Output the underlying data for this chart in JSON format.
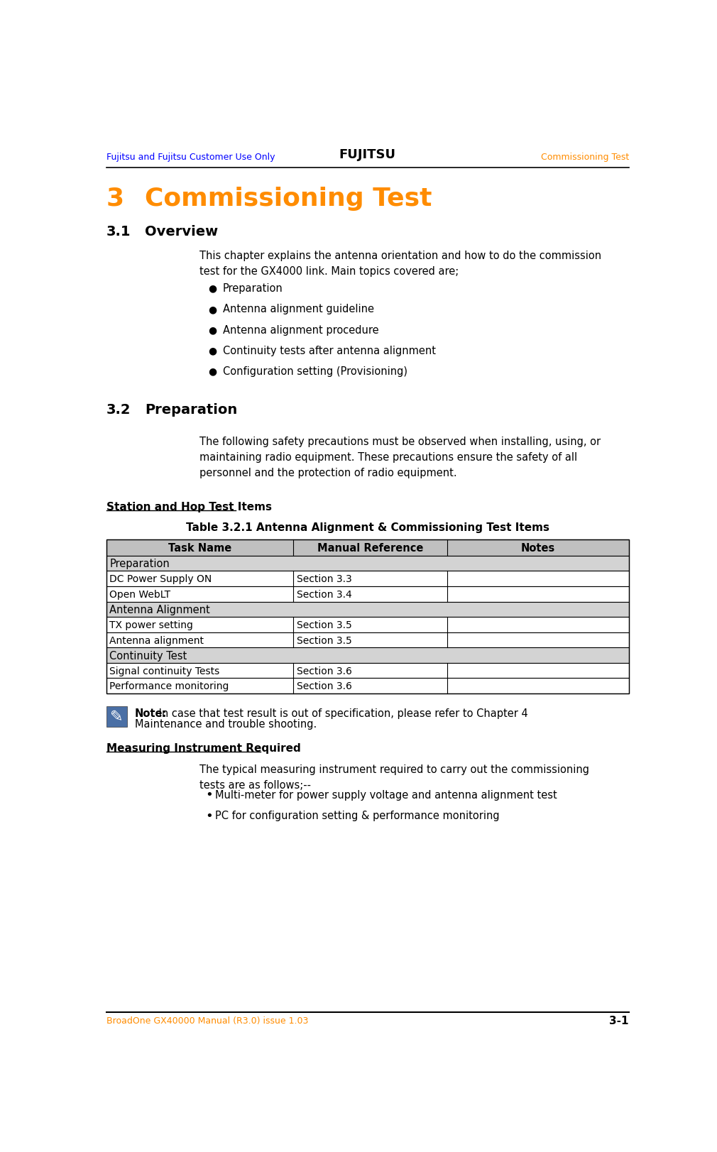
{
  "header_left": "Fujitsu and Fujitsu Customer Use Only",
  "header_center": "FUJITSU",
  "header_right": "Commissioning Test",
  "footer_left": "BroadOne GX40000 Manual (R3.0) issue 1.03",
  "footer_right": "3-1",
  "chapter_num": "3",
  "chapter_title": "Commissioning Test",
  "section_31": "3.1",
  "section_31_title": "Overview",
  "overview_text": "This chapter explains the antenna orientation and how to do the commission\ntest for the GX4000 link. Main topics covered are;",
  "bullet_items": [
    "Preparation",
    "Antenna alignment guideline",
    "Antenna alignment procedure",
    "Continuity tests after antenna alignment",
    "Configuration setting (Provisioning)"
  ],
  "section_32": "3.2",
  "section_32_title": "Preparation",
  "preparation_text": "The following safety precautions must be observed when installing, using, or\nmaintaining radio equipment. These precautions ensure the safety of all\npersonnel and the protection of radio equipment.",
  "station_hop_heading": "Station and Hop Test Items",
  "table_title": "Table 3.2.1 Antenna Alignment & Commissioning Test Items",
  "table_headers": [
    "Task Name",
    "Manual Reference",
    "Notes"
  ],
  "table_rows": [
    {
      "type": "group",
      "name": "Preparation",
      "ref": "",
      "notes": ""
    },
    {
      "type": "data",
      "name": "DC Power Supply ON",
      "ref": "Section 3.3",
      "notes": ""
    },
    {
      "type": "data",
      "name": "Open WebLT",
      "ref": "Section 3.4",
      "notes": ""
    },
    {
      "type": "group",
      "name": "Antenna Alignment",
      "ref": "",
      "notes": ""
    },
    {
      "type": "data",
      "name": "TX power setting",
      "ref": "Section 3.5",
      "notes": ""
    },
    {
      "type": "data",
      "name": "Antenna alignment",
      "ref": "Section 3.5",
      "notes": ""
    },
    {
      "type": "group",
      "name": "Continuity Test",
      "ref": "",
      "notes": ""
    },
    {
      "type": "data",
      "name": "Signal continuity Tests",
      "ref": "Section 3.6",
      "notes": ""
    },
    {
      "type": "data",
      "name": "Performance monitoring",
      "ref": "Section 3.6",
      "notes": ""
    }
  ],
  "note_bold": "Note:",
  "note_text_line1": " In case that test result is out of specification, please refer to Chapter 4",
  "note_text_line2": "Maintenance and trouble shooting.",
  "measuring_heading": "Measuring Instrument Required",
  "measuring_text": "The typical measuring instrument required to carry out the commissioning\ntests are as follows;--",
  "measuring_bullets": [
    "Multi-meter for power supply voltage and antenna alignment test",
    "PC for configuration setting & performance monitoring"
  ],
  "orange_color": "#FF8C00",
  "blue_color": "#0000FF",
  "black_color": "#000000",
  "header_line_color": "#000000",
  "bg_color": "#FFFFFF",
  "table_header_bg": "#C0C0C0",
  "table_group_bg": "#D3D3D3",
  "table_data_bg": "#FFFFFF",
  "table_border_color": "#000000",
  "note_icon_bg": "#4A6FA5",
  "note_icon_fg": "#FFFFFF"
}
